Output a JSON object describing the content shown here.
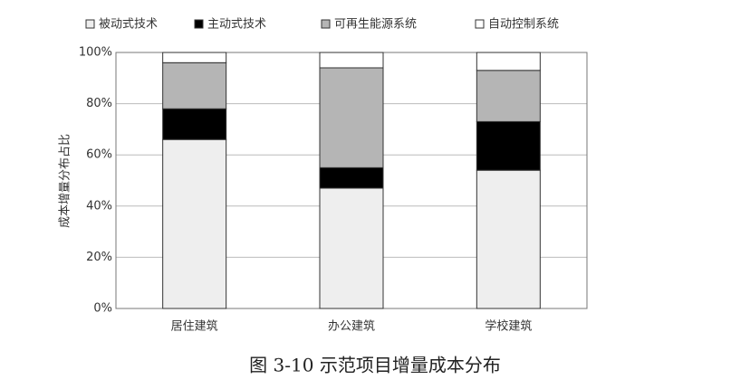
{
  "chart_data": {
    "type": "stacked-bar",
    "title": "图 3-10 示范项目增量成本分布",
    "y_label": "成本增量分布占比",
    "categories": [
      "居住建筑",
      "办公建筑",
      "学校建筑"
    ],
    "series": [
      {
        "name": "被动式技术",
        "color": "#eeeeee",
        "values": [
          66,
          47,
          54
        ]
      },
      {
        "name": "主动式技术",
        "color": "#000000",
        "values": [
          12,
          8,
          19
        ]
      },
      {
        "name": "可再生能源系统",
        "color": "#b5b5b5",
        "values": [
          18,
          39,
          20
        ]
      },
      {
        "name": "自动控制系统",
        "color": "#ffffff",
        "values": [
          4,
          6,
          7
        ]
      }
    ],
    "ylim": [
      0,
      100
    ],
    "yticks": [
      {
        "value": 0,
        "label": "0%"
      },
      {
        "value": 20,
        "label": "20%"
      },
      {
        "value": 40,
        "label": "40%"
      },
      {
        "value": 60,
        "label": "60%"
      },
      {
        "value": 80,
        "label": "80%"
      },
      {
        "value": 100,
        "label": "100%"
      }
    ],
    "grid": true,
    "legend": "top"
  }
}
